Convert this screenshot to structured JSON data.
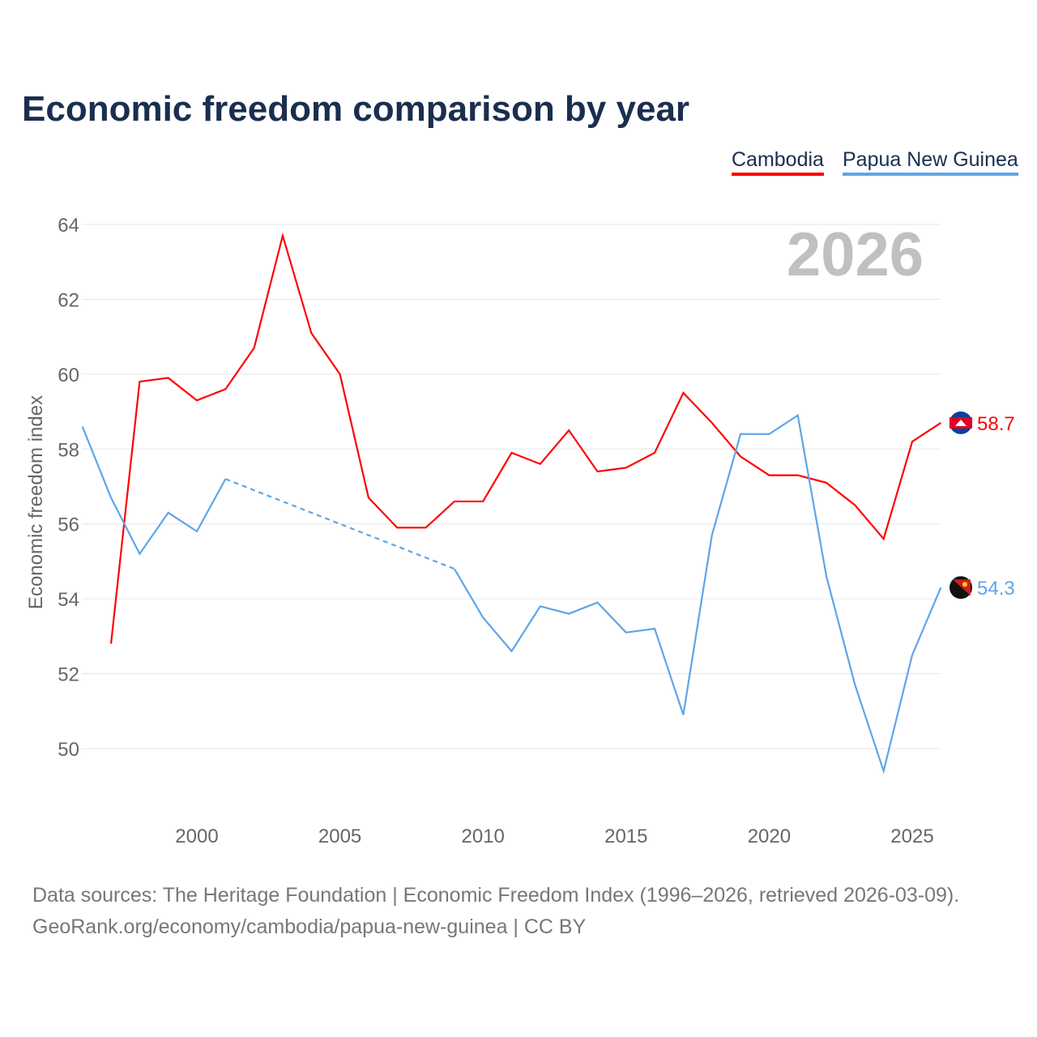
{
  "title": "Economic freedom comparison by year",
  "footer": {
    "line1": "Data sources: The Heritage Foundation | Economic Freedom Index (1996–2026, retrieved 2026-03-09).",
    "line2": "GeoRank.org/economy/cambodia/papua-new-guinea | CC BY"
  },
  "chart_data": {
    "type": "line",
    "title": "Economic freedom comparison by year",
    "ylabel": "Economic freedom index",
    "xlabel": "",
    "year_watermark": "2026",
    "xlim": [
      1996,
      2026
    ],
    "ylim": [
      48.3,
      64.6
    ],
    "yticks": [
      50,
      52,
      54,
      56,
      58,
      60,
      62,
      64
    ],
    "xticks": [
      2000,
      2005,
      2010,
      2015,
      2020,
      2025
    ],
    "grid": true,
    "legend_position": "top-right",
    "x": [
      1996,
      1997,
      1998,
      1999,
      2000,
      2001,
      2002,
      2003,
      2004,
      2005,
      2006,
      2007,
      2008,
      2009,
      2010,
      2011,
      2012,
      2013,
      2014,
      2015,
      2016,
      2017,
      2018,
      2019,
      2020,
      2021,
      2022,
      2023,
      2024,
      2025,
      2026
    ],
    "series": [
      {
        "name": "Cambodia",
        "color": "#ff0000",
        "end_label": "58.7",
        "flag": "cambodia-flag",
        "values": [
          null,
          52.8,
          59.8,
          59.9,
          59.3,
          59.6,
          60.7,
          63.7,
          61.1,
          60.0,
          56.7,
          55.9,
          55.9,
          56.6,
          56.6,
          57.9,
          57.6,
          58.5,
          57.4,
          57.5,
          57.9,
          59.5,
          58.7,
          57.8,
          57.3,
          57.3,
          57.1,
          56.5,
          55.6,
          58.2,
          58.7
        ]
      },
      {
        "name": "Papua New Guinea",
        "color": "#5ea5e8",
        "end_label": "54.3",
        "flag": "papua-new-guinea-flag",
        "values": [
          58.6,
          56.7,
          55.2,
          56.3,
          55.8,
          57.2,
          null,
          null,
          null,
          null,
          null,
          null,
          null,
          54.8,
          53.5,
          52.6,
          53.8,
          53.6,
          53.9,
          53.1,
          53.2,
          50.9,
          55.7,
          58.4,
          58.4,
          58.9,
          54.6,
          51.7,
          49.4,
          52.5,
          54.3
        ]
      }
    ]
  }
}
